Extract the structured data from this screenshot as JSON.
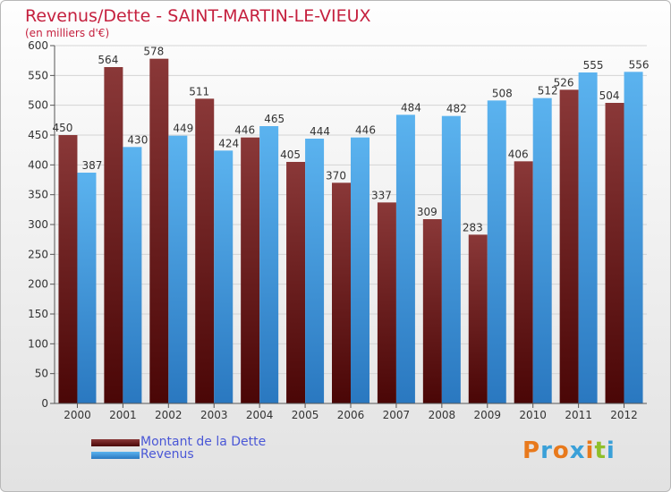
{
  "header": {
    "title": "Revenus/Dette - SAINT-MARTIN-LE-VIEUX",
    "subtitle": "(en milliers d'€)"
  },
  "legend": {
    "items": [
      {
        "label": "Montant de la Dette",
        "color": "#7a1515"
      },
      {
        "label": "Revenus",
        "color": "#3d93db"
      }
    ]
  },
  "logo": {
    "text": "Proxiti"
  },
  "colors": {
    "title": "#c5203e",
    "dette_top": "#8a3838",
    "dette_bottom": "#4a0606",
    "revenus_top": "#5bb3ef",
    "revenus_bottom": "#2a78c0"
  },
  "chart_data": {
    "type": "bar",
    "title": "Revenus/Dette - SAINT-MARTIN-LE-VIEUX",
    "ylabel": "(en milliers d'€)",
    "xlabel": "",
    "ylim": [
      0,
      600
    ],
    "yticks": [
      0,
      50,
      100,
      150,
      200,
      250,
      300,
      350,
      400,
      450,
      500,
      550,
      600
    ],
    "grid": true,
    "categories": [
      "2000",
      "2001",
      "2002",
      "2003",
      "2004",
      "2005",
      "2006",
      "2007",
      "2008",
      "2009",
      "2010",
      "2011",
      "2012"
    ],
    "series": [
      {
        "name": "Montant de la Dette",
        "values": [
          450,
          564,
          578,
          511,
          446,
          405,
          370,
          337,
          309,
          283,
          406,
          526,
          504
        ]
      },
      {
        "name": "Revenus",
        "values": [
          387,
          430,
          449,
          424,
          465,
          444,
          446,
          484,
          482,
          508,
          512,
          555,
          556
        ]
      }
    ]
  }
}
